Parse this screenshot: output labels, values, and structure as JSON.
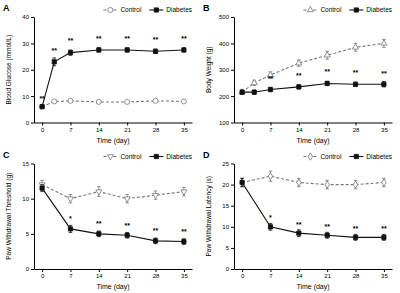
{
  "chart_data": [
    {
      "type": "line",
      "title": "A",
      "xlabel": "Time (day)",
      "ylabel": "Blood Glucose (mmol/L)",
      "x": [
        0,
        3,
        7,
        14,
        21,
        28,
        35
      ],
      "series": [
        {
          "name": "Control",
          "color": "#777777",
          "marker": "circle",
          "line_style": "dashed",
          "values": [
            6.0,
            8.0,
            8.2,
            7.8,
            7.8,
            8.2,
            8.0
          ],
          "errors": [
            0.3,
            0.5,
            0.5,
            0.4,
            0.5,
            0.5,
            0.5
          ]
        },
        {
          "name": "Diabetes",
          "color": "#111111",
          "marker": "square",
          "line_style": "solid",
          "values": [
            6.0,
            23.0,
            26.5,
            27.5,
            27.5,
            27.0,
            27.5
          ],
          "errors": [
            0.4,
            1.5,
            1.0,
            0.8,
            0.8,
            0.8,
            0.8
          ]
        }
      ],
      "annotations": [
        {
          "x": 0,
          "y": 8.0,
          "text": "**"
        },
        {
          "x": 3,
          "y": 26.5,
          "text": "**"
        },
        {
          "x": 7,
          "y": 30.0,
          "text": "**"
        },
        {
          "x": 14,
          "y": 31.0,
          "text": "**"
        },
        {
          "x": 21,
          "y": 31.0,
          "text": "**"
        },
        {
          "x": 28,
          "y": 30.5,
          "text": "**"
        },
        {
          "x": 35,
          "y": 31.0,
          "text": "**"
        }
      ],
      "xlim": [
        -2,
        37
      ],
      "xticks": [
        0,
        7,
        14,
        21,
        28,
        35
      ],
      "ylim": [
        0,
        40
      ],
      "yticks": [
        0,
        10,
        20,
        30,
        40
      ],
      "legend": "upper right"
    },
    {
      "type": "line",
      "title": "B",
      "xlabel": "Time (day)",
      "ylabel": "Body Weight (g)",
      "x": [
        0,
        3,
        7,
        14,
        21,
        28,
        35
      ],
      "series": [
        {
          "name": "Control",
          "color": "#777777",
          "marker": "triangle-up",
          "line_style": "dashed",
          "values": [
            215,
            250,
            280,
            325,
            355,
            385,
            400
          ],
          "errors": [
            8,
            10,
            12,
            12,
            15,
            15,
            15
          ]
        },
        {
          "name": "Diabetes",
          "color": "#111111",
          "marker": "square",
          "line_style": "solid",
          "values": [
            215,
            215,
            225,
            235,
            248,
            245,
            245
          ],
          "errors": [
            8,
            8,
            8,
            8,
            8,
            8,
            10
          ]
        }
      ],
      "annotations": [
        {
          "x": 7,
          "y": 258,
          "text": "**"
        },
        {
          "x": 14,
          "y": 270,
          "text": "**"
        },
        {
          "x": 21,
          "y": 284,
          "text": "**"
        },
        {
          "x": 28,
          "y": 280,
          "text": "**"
        },
        {
          "x": 35,
          "y": 278,
          "text": "**"
        }
      ],
      "xlim": [
        -2,
        37
      ],
      "xticks": [
        0,
        7,
        14,
        21,
        28,
        35
      ],
      "ylim": [
        100,
        500
      ],
      "yticks": [
        100,
        200,
        300,
        400,
        500
      ],
      "legend": "upper right"
    },
    {
      "type": "line",
      "title": "C",
      "xlabel": "Time (day)",
      "ylabel": "Paw Withdrawal Threshold (g)",
      "x": [
        0,
        7,
        14,
        21,
        28,
        35
      ],
      "series": [
        {
          "name": "Control",
          "color": "#777777",
          "marker": "triangle-down",
          "line_style": "dashed",
          "values": [
            12.0,
            10.0,
            11.0,
            10.0,
            10.5,
            11.0
          ],
          "errors": [
            0.6,
            0.6,
            0.7,
            0.6,
            0.6,
            0.6
          ]
        },
        {
          "name": "Diabetes",
          "color": "#111111",
          "marker": "square",
          "line_style": "solid",
          "values": [
            11.5,
            5.7,
            5.0,
            4.8,
            4.0,
            3.9
          ],
          "errors": [
            0.5,
            0.5,
            0.4,
            0.4,
            0.4,
            0.4
          ]
        }
      ],
      "annotations": [
        {
          "x": 7,
          "y": 6.8,
          "text": "*"
        },
        {
          "x": 14,
          "y": 6.1,
          "text": "**"
        },
        {
          "x": 21,
          "y": 5.9,
          "text": "**"
        },
        {
          "x": 28,
          "y": 5.1,
          "text": "**"
        },
        {
          "x": 35,
          "y": 5.0,
          "text": "**"
        }
      ],
      "xlim": [
        -2,
        37
      ],
      "xticks": [
        0,
        7,
        14,
        21,
        28,
        35
      ],
      "ylim": [
        0,
        15
      ],
      "yticks": [
        0,
        5,
        10,
        15
      ],
      "legend": "upper right"
    },
    {
      "type": "line",
      "title": "D",
      "xlabel": "Time (day)",
      "ylabel": "Paw Withdrawal Latency (s)",
      "x": [
        0,
        7,
        14,
        21,
        28,
        35
      ],
      "series": [
        {
          "name": "Control",
          "color": "#777777",
          "marker": "diamond",
          "line_style": "dashed",
          "values": [
            20.5,
            22.0,
            20.5,
            20.0,
            20.0,
            20.5
          ],
          "errors": [
            1.0,
            1.2,
            1.0,
            1.0,
            1.0,
            1.0
          ]
        },
        {
          "name": "Diabetes",
          "color": "#111111",
          "marker": "square",
          "line_style": "solid",
          "values": [
            20.5,
            10.0,
            8.5,
            8.0,
            7.5,
            7.5
          ],
          "errors": [
            1.0,
            0.8,
            0.8,
            0.7,
            0.7,
            0.7
          ]
        }
      ],
      "annotations": [
        {
          "x": 7,
          "y": 11.5,
          "text": "*"
        },
        {
          "x": 14,
          "y": 10.0,
          "text": "**"
        },
        {
          "x": 21,
          "y": 9.5,
          "text": "**"
        },
        {
          "x": 28,
          "y": 9.0,
          "text": "**"
        },
        {
          "x": 35,
          "y": 9.0,
          "text": "**"
        }
      ],
      "xlim": [
        -2,
        37
      ],
      "xticks": [
        0,
        7,
        14,
        21,
        28,
        35
      ],
      "ylim": [
        0,
        25
      ],
      "yticks": [
        0,
        5,
        10,
        15,
        20,
        25
      ],
      "legend": "upper right"
    }
  ]
}
